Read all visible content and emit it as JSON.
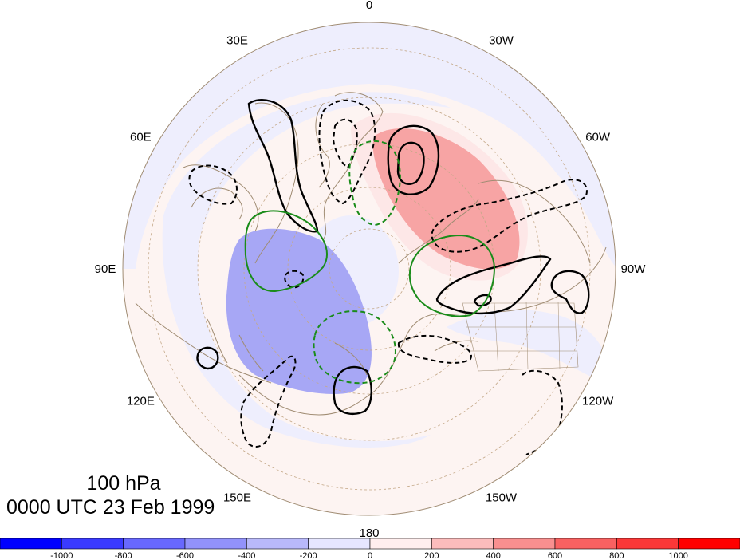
{
  "map": {
    "projection": "north-polar-stereographic",
    "longitude_labels": [
      {
        "lon": 0,
        "text": "0"
      },
      {
        "lon": 30,
        "text": "30W"
      },
      {
        "lon": 60,
        "text": "60W"
      },
      {
        "lon": 90,
        "text": "90W"
      },
      {
        "lon": 120,
        "text": "120W"
      },
      {
        "lon": 150,
        "text": "150W"
      },
      {
        "lon": 180,
        "text": "180"
      },
      {
        "lon": 210,
        "text": "150E"
      },
      {
        "lon": 240,
        "text": "120E"
      },
      {
        "lon": 270,
        "text": "90E"
      },
      {
        "lon": 300,
        "text": "60E"
      },
      {
        "lon": 330,
        "text": "30E"
      }
    ],
    "colors": {
      "positive_contour": "#000000",
      "negative_contour": "#000000",
      "green_contour": "#1a8c1a",
      "coastline": "#a08c73",
      "grid": "#b89a78",
      "disk_background": "#fdf4f2"
    }
  },
  "info": {
    "level": "100 hPa",
    "time": "0000 UTC 23 Feb 1999"
  },
  "colorbar": {
    "boxes": [
      "#0000ff",
      "#3a3aff",
      "#6868fe",
      "#9292fb",
      "#b9b9fa",
      "#e6e6ff",
      "#ffeeee",
      "#fcbcbc",
      "#f88f8f",
      "#f86161",
      "#fb3838",
      "#ff0000"
    ],
    "ticks": [
      "-1000",
      "-800",
      "-600",
      "-400",
      "-200",
      "0",
      "200",
      "400",
      "600",
      "800",
      "1000"
    ]
  }
}
